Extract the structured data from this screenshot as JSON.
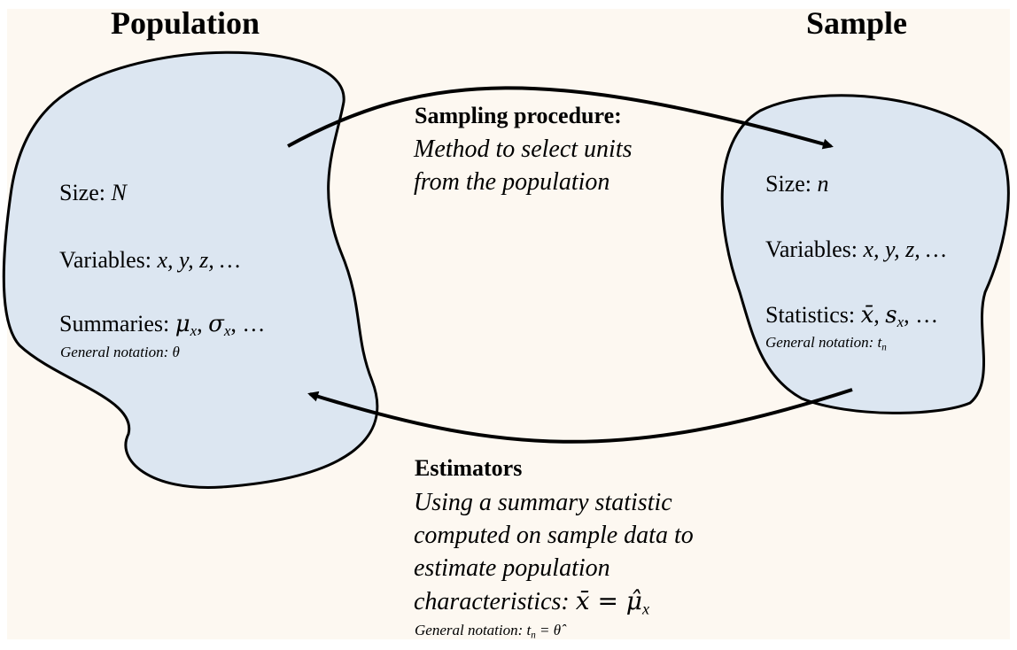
{
  "colors": {
    "background": "#fdf8f1",
    "blob_fill": "#dce6f1",
    "stroke": "#000000"
  },
  "population": {
    "title": "Population",
    "size_label": "Size:",
    "size_value": "N",
    "variables_label": "Variables:",
    "variables_value": "x, y, z, …",
    "summaries_label": "Summaries:",
    "summaries_value_1": "μ",
    "summaries_sub_1": "x",
    "summaries_sep": ", ",
    "summaries_value_2": "σ",
    "summaries_sub_2": "x",
    "summaries_tail": ", …",
    "notation": "General notation: θ"
  },
  "sample": {
    "title": "Sample",
    "size_label": "Size:",
    "size_value": "n",
    "variables_label": "Variables:",
    "variables_value": "x, y, z, …",
    "statistics_label": "Statistics:",
    "statistics_value_1": "x̄",
    "statistics_sep": ", ",
    "statistics_value_2": "s",
    "statistics_sub_2": "x",
    "statistics_tail": ", …",
    "notation_prefix": "General notation: t",
    "notation_sub": "n"
  },
  "sampling": {
    "heading": "Sampling procedure:",
    "line1": "Method to select units",
    "line2": "from the population"
  },
  "estimators": {
    "heading": "Estimators",
    "line1": "Using a summary statistic",
    "line2": "computed on sample data to",
    "line3": "estimate population",
    "line4_prefix": "characteristics: ",
    "line4_math": "x̄ =  μ̂",
    "line4_sub": "x",
    "notation_prefix": "General notation: t",
    "notation_sub": "n",
    "notation_suffix": " = θ̂"
  }
}
